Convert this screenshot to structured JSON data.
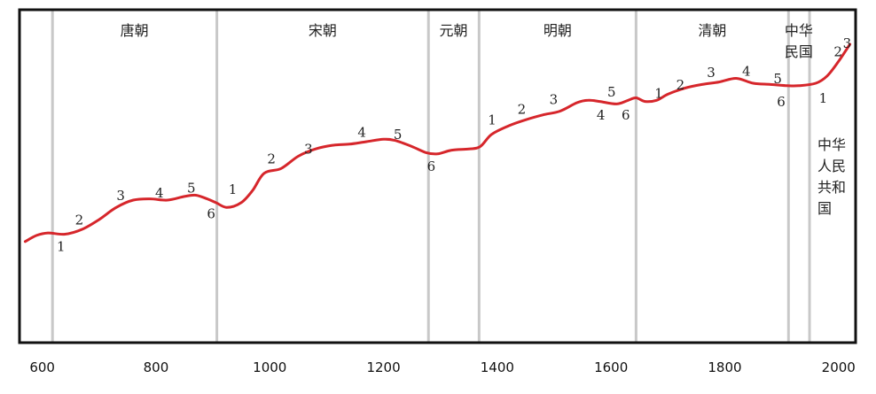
{
  "chart_data": {
    "type": "line",
    "title": "",
    "xlabel": "",
    "ylabel": "",
    "xlim": [
      560,
      2030
    ],
    "ylim": [
      0,
      100
    ],
    "x_ticks": [
      {
        "value": 600,
        "label": "600"
      },
      {
        "value": 800,
        "label": "800"
      },
      {
        "value": 1000,
        "label": "1000"
      },
      {
        "value": 1200,
        "label": "1200"
      },
      {
        "value": 1400,
        "label": "1400"
      },
      {
        "value": 1600,
        "label": "1600"
      },
      {
        "value": 1800,
        "label": "1800"
      },
      {
        "value": 2000,
        "label": "2000"
      }
    ],
    "grid": false,
    "line_color": "#d6262b",
    "divider_color": "#c8c8c8",
    "dividers": [
      618,
      907,
      1279,
      1368,
      1644,
      1912,
      1949
    ],
    "dynasties": [
      {
        "label": "唐朝",
        "x": 762
      },
      {
        "label": "宋朝",
        "x": 1093
      },
      {
        "label": "元朝",
        "x": 1323
      },
      {
        "label": "明朝",
        "x": 1506
      },
      {
        "label": "清朝",
        "x": 1778
      },
      {
        "label": "中华",
        "label2": "民国",
        "x": 1930
      }
    ],
    "prc_label": [
      "中华",
      "人民",
      "共和",
      "国"
    ],
    "series": [
      {
        "values": [
          [
            570,
            19
          ],
          [
            590,
            21.5
          ],
          [
            610,
            22.5
          ],
          [
            640,
            22
          ],
          [
            670,
            24
          ],
          [
            700,
            28
          ],
          [
            730,
            33
          ],
          [
            760,
            36
          ],
          [
            790,
            36.5
          ],
          [
            820,
            36
          ],
          [
            850,
            37.5
          ],
          [
            870,
            38
          ],
          [
            890,
            36.5
          ],
          [
            905,
            35
          ],
          [
            925,
            33
          ],
          [
            950,
            35
          ],
          [
            970,
            40
          ],
          [
            990,
            47
          ],
          [
            1020,
            49
          ],
          [
            1050,
            54
          ],
          [
            1080,
            57
          ],
          [
            1110,
            58.5
          ],
          [
            1140,
            59
          ],
          [
            1170,
            60
          ],
          [
            1200,
            61
          ],
          [
            1220,
            60.5
          ],
          [
            1250,
            58
          ],
          [
            1275,
            55.5
          ],
          [
            1295,
            55
          ],
          [
            1320,
            56.5
          ],
          [
            1350,
            57
          ],
          [
            1370,
            58
          ],
          [
            1390,
            63
          ],
          [
            1420,
            66.5
          ],
          [
            1450,
            69
          ],
          [
            1480,
            71
          ],
          [
            1510,
            72.5
          ],
          [
            1540,
            76
          ],
          [
            1560,
            77
          ],
          [
            1580,
            76.5
          ],
          [
            1610,
            75.5
          ],
          [
            1630,
            77
          ],
          [
            1644,
            78
          ],
          [
            1660,
            76.5
          ],
          [
            1680,
            77
          ],
          [
            1700,
            79.5
          ],
          [
            1730,
            82
          ],
          [
            1760,
            83.5
          ],
          [
            1790,
            84.5
          ],
          [
            1820,
            86
          ],
          [
            1850,
            84
          ],
          [
            1880,
            83.5
          ],
          [
            1910,
            83
          ],
          [
            1930,
            83
          ],
          [
            1960,
            84
          ],
          [
            1980,
            87
          ],
          [
            2000,
            93
          ],
          [
            2020,
            100
          ]
        ]
      }
    ],
    "annotations": [
      {
        "text": "1",
        "x": 633,
        "y": 16.5
      },
      {
        "text": "2",
        "x": 665,
        "y": 27.5
      },
      {
        "text": "3",
        "x": 738,
        "y": 37.5
      },
      {
        "text": "4",
        "x": 806,
        "y": 38.5
      },
      {
        "text": "5",
        "x": 862,
        "y": 40.5
      },
      {
        "text": "6",
        "x": 897,
        "y": 30
      },
      {
        "text": "1",
        "x": 935,
        "y": 40
      },
      {
        "text": "2",
        "x": 1003,
        "y": 52.5
      },
      {
        "text": "3",
        "x": 1068,
        "y": 56.5
      },
      {
        "text": "4",
        "x": 1162,
        "y": 63.5
      },
      {
        "text": "5",
        "x": 1225,
        "y": 62.5
      },
      {
        "text": "6",
        "x": 1284,
        "y": 49.5
      },
      {
        "text": "1",
        "x": 1391,
        "y": 68.5
      },
      {
        "text": "2",
        "x": 1443,
        "y": 73
      },
      {
        "text": "3",
        "x": 1499,
        "y": 77
      },
      {
        "text": "4",
        "x": 1582,
        "y": 70.5
      },
      {
        "text": "5",
        "x": 1601,
        "y": 80
      },
      {
        "text": "6",
        "x": 1626,
        "y": 70.5
      },
      {
        "text": "1",
        "x": 1684,
        "y": 79.5
      },
      {
        "text": "2",
        "x": 1722,
        "y": 83
      },
      {
        "text": "3",
        "x": 1776,
        "y": 88
      },
      {
        "text": "4",
        "x": 1838,
        "y": 88.5
      },
      {
        "text": "5",
        "x": 1893,
        "y": 85.5
      },
      {
        "text": "6",
        "x": 1899,
        "y": 76
      },
      {
        "text": "1",
        "x": 1973,
        "y": 77.5
      },
      {
        "text": "2",
        "x": 1999,
        "y": 96.5
      },
      {
        "text": "3",
        "x": 2015,
        "y": 100
      }
    ]
  }
}
